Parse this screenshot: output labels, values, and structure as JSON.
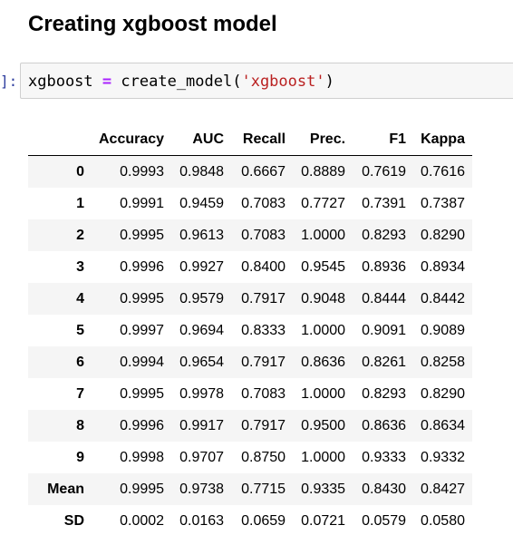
{
  "heading": "Creating xgboost model",
  "cell": {
    "prompt": "]:",
    "code": {
      "var": "xgboost",
      "op": "=",
      "func": "create_model(",
      "arg": "'xgboost'",
      "close": ")"
    }
  },
  "table": {
    "columns": [
      "",
      "Accuracy",
      "AUC",
      "Recall",
      "Prec.",
      "F1",
      "Kappa"
    ],
    "rows": [
      {
        "index": "0",
        "values": [
          "0.9993",
          "0.9848",
          "0.6667",
          "0.8889",
          "0.7619",
          "0.7616"
        ]
      },
      {
        "index": "1",
        "values": [
          "0.9991",
          "0.9459",
          "0.7083",
          "0.7727",
          "0.7391",
          "0.7387"
        ]
      },
      {
        "index": "2",
        "values": [
          "0.9995",
          "0.9613",
          "0.7083",
          "1.0000",
          "0.8293",
          "0.8290"
        ]
      },
      {
        "index": "3",
        "values": [
          "0.9996",
          "0.9927",
          "0.8400",
          "0.9545",
          "0.8936",
          "0.8934"
        ]
      },
      {
        "index": "4",
        "values": [
          "0.9995",
          "0.9579",
          "0.7917",
          "0.9048",
          "0.8444",
          "0.8442"
        ]
      },
      {
        "index": "5",
        "values": [
          "0.9997",
          "0.9694",
          "0.8333",
          "1.0000",
          "0.9091",
          "0.9089"
        ]
      },
      {
        "index": "6",
        "values": [
          "0.9994",
          "0.9654",
          "0.7917",
          "0.8636",
          "0.8261",
          "0.8258"
        ]
      },
      {
        "index": "7",
        "values": [
          "0.9995",
          "0.9978",
          "0.7083",
          "1.0000",
          "0.8293",
          "0.8290"
        ]
      },
      {
        "index": "8",
        "values": [
          "0.9996",
          "0.9917",
          "0.7917",
          "0.9500",
          "0.8636",
          "0.8634"
        ]
      },
      {
        "index": "9",
        "values": [
          "0.9998",
          "0.9707",
          "0.8750",
          "1.0000",
          "0.9333",
          "0.9332"
        ]
      },
      {
        "index": "Mean",
        "values": [
          "0.9995",
          "0.9738",
          "0.7715",
          "0.9335",
          "0.8430",
          "0.8427"
        ]
      },
      {
        "index": "SD",
        "values": [
          "0.0002",
          "0.0163",
          "0.0659",
          "0.0721",
          "0.0579",
          "0.0580"
        ]
      }
    ]
  }
}
